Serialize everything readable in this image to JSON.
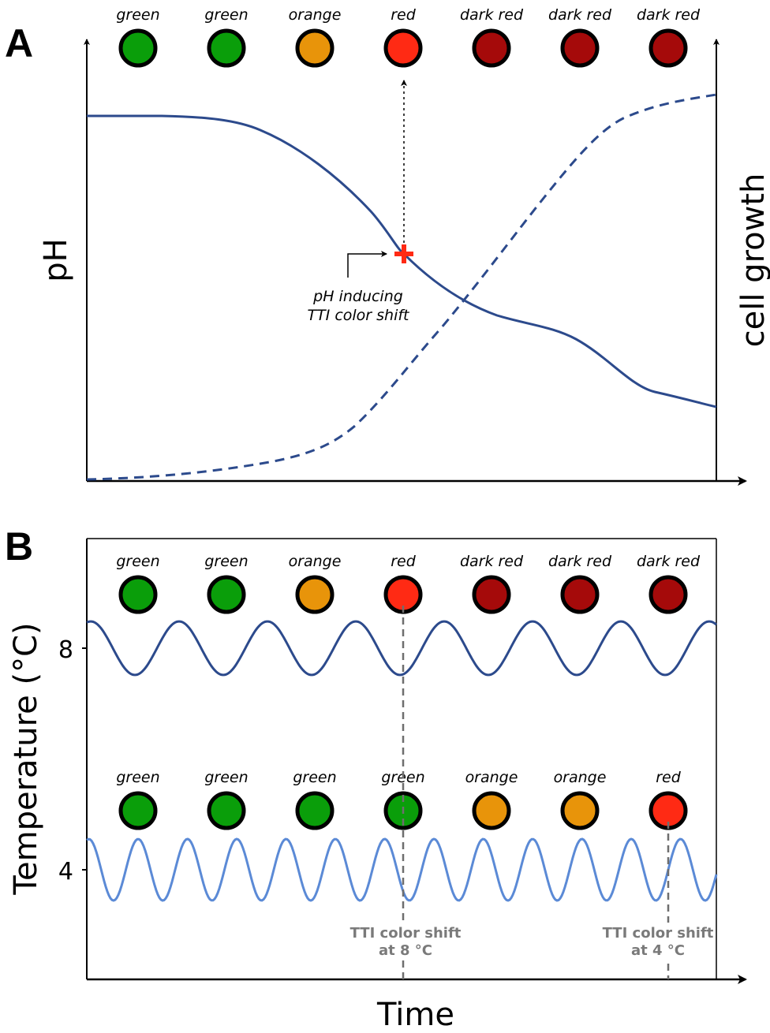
{
  "panel_a": {
    "letter": "A",
    "indicator_labels": [
      "green",
      "green",
      "orange",
      "red",
      "dark red",
      "dark red",
      "dark red"
    ],
    "left_axis_label": "pH",
    "right_axis_label": "cell growth",
    "annotation_line1": "pH inducing",
    "annotation_line2": "TTI color shift"
  },
  "panel_b": {
    "letter": "B",
    "y_axis_label": "Temperature (°C)",
    "y_ticks": [
      "8",
      "4"
    ],
    "row_8c_labels": [
      "green",
      "green",
      "orange",
      "red",
      "dark red",
      "dark red",
      "dark red"
    ],
    "row_4c_labels": [
      "green",
      "green",
      "green",
      "green",
      "orange",
      "orange",
      "red"
    ],
    "shift_8_line1": "TTI color shift",
    "shift_8_line2": "at 8 °C",
    "shift_4_line1": "TTI color shift",
    "shift_4_line2": "at 4 °C",
    "x_axis_label": "Time"
  },
  "colors": {
    "green": "#0a9e0a",
    "orange": "#e8940a",
    "red": "#ff2a14",
    "dark red": "#a50a0a",
    "curve_dark_blue": "#2c4a8c",
    "curve_light_blue": "#5b8ad6",
    "shift_gray": "#7a7a7a"
  }
}
